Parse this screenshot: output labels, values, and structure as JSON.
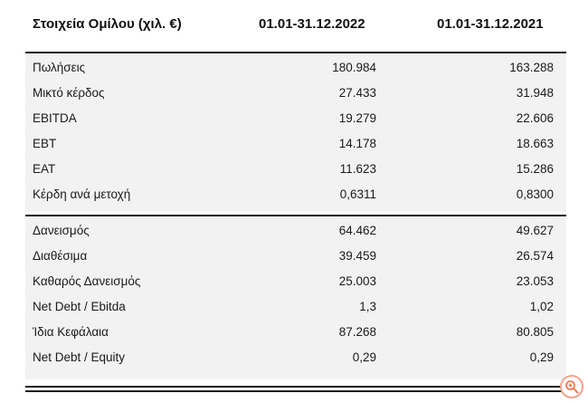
{
  "header": {
    "label": "Στοιχεία Ομίλου (χιλ. €)",
    "col1": "01.01-31.12.2022",
    "col2": "01.01-31.12.2021"
  },
  "section1": [
    {
      "label": "Πωλήσεις",
      "v1": "180.984",
      "v2": "163.288"
    },
    {
      "label": "Μικτό κέρδος",
      "v1": "27.433",
      "v2": "31.948"
    },
    {
      "label": "EBITDA",
      "v1": "19.279",
      "v2": "22.606"
    },
    {
      "label": "EBT",
      "v1": "14.178",
      "v2": "18.663"
    },
    {
      "label": "EAT",
      "v1": "11.623",
      "v2": "15.286"
    },
    {
      "label": "Κέρδη ανά μετοχή",
      "v1": "0,6311",
      "v2": "0,8300"
    }
  ],
  "section2": [
    {
      "label": "Δανεισμός",
      "v1": "64.462",
      "v2": "49.627"
    },
    {
      "label": "Διαθέσιμα",
      "v1": "39.459",
      "v2": "26.574"
    },
    {
      "label": "Καθαρός Δανεισμός",
      "v1": "25.003",
      "v2": "23.053"
    },
    {
      "label": "Net Debt / Ebitda",
      "v1": "1,3",
      "v2": "1,02"
    },
    {
      "label": "Ίδια Κεφάλαια",
      "v1": "87.268",
      "v2": "80.805"
    },
    {
      "label": "Net Debt / Equity",
      "v1": "0,29",
      "v2": "0,29"
    }
  ],
  "icons": {
    "zoom": "zoom-in-icon"
  },
  "colors": {
    "zoom_accent": "#f07a55"
  }
}
